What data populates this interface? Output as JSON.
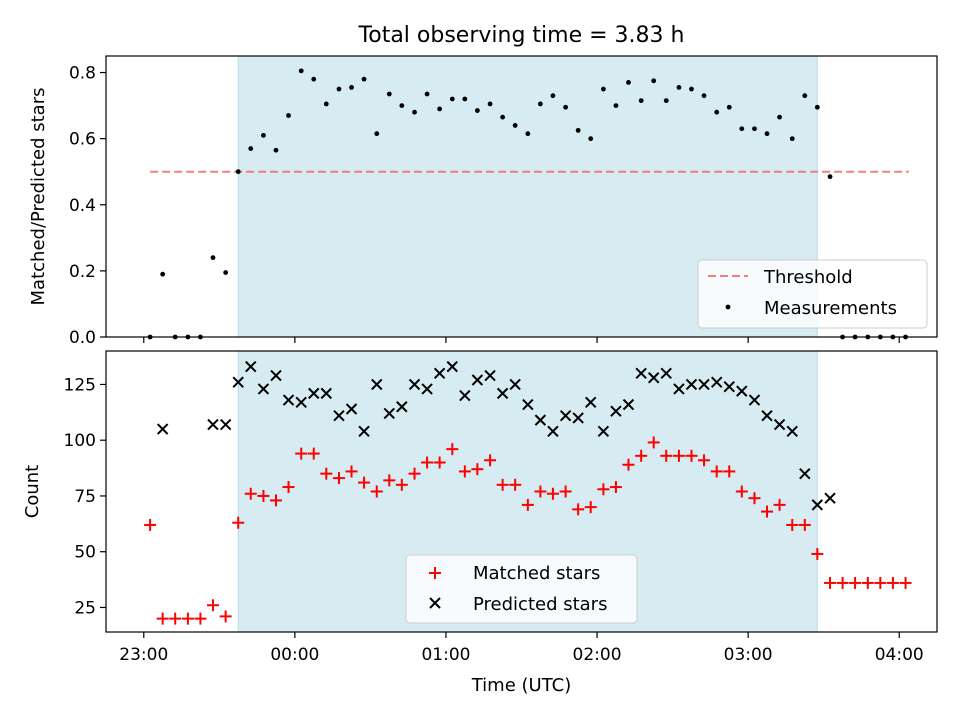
{
  "chart_data": [
    {
      "type": "scatter",
      "title": "Total observing time = 3.83 h",
      "ylabel": "Matched/Predicted stars",
      "ylim": [
        0,
        0.85
      ],
      "xlim": [
        -1.25,
        4.25
      ],
      "y_ticks": [
        0.0,
        0.2,
        0.4,
        0.6,
        0.8
      ],
      "y_tick_labels": [
        "0.0",
        "0.2",
        "0.4",
        "0.6",
        "0.8"
      ],
      "observing_window": [
        -0.375,
        3.458
      ],
      "threshold": {
        "name": "Threshold",
        "value": 0.5,
        "x_range": [
          -0.958,
          4.063
        ],
        "color": "#f08080"
      },
      "series": [
        {
          "name": "Measurements",
          "color": "#000000",
          "x": [
            -0.958,
            -0.875,
            -0.792,
            -0.708,
            -0.625,
            -0.542,
            -0.458,
            -0.375,
            -0.292,
            -0.208,
            -0.125,
            -0.042,
            0.042,
            0.125,
            0.208,
            0.292,
            0.375,
            0.458,
            0.542,
            0.625,
            0.708,
            0.792,
            0.875,
            0.958,
            1.042,
            1.125,
            1.208,
            1.292,
            1.375,
            1.458,
            1.542,
            1.625,
            1.708,
            1.792,
            1.875,
            1.958,
            2.042,
            2.125,
            2.208,
            2.292,
            2.375,
            2.458,
            2.542,
            2.625,
            2.708,
            2.792,
            2.875,
            2.958,
            3.042,
            3.125,
            3.208,
            3.292,
            3.375,
            3.458,
            3.542,
            3.625,
            3.708,
            3.792,
            3.875,
            3.958,
            4.042
          ],
          "y": [
            0.0,
            0.19,
            0.0,
            0.0,
            0.0,
            0.24,
            0.195,
            0.5,
            0.57,
            0.61,
            0.565,
            0.67,
            0.805,
            0.78,
            0.705,
            0.75,
            0.755,
            0.78,
            0.615,
            0.735,
            0.7,
            0.68,
            0.735,
            0.69,
            0.72,
            0.72,
            0.685,
            0.705,
            0.665,
            0.64,
            0.615,
            0.705,
            0.73,
            0.695,
            0.625,
            0.6,
            0.75,
            0.7,
            0.77,
            0.715,
            0.775,
            0.715,
            0.755,
            0.75,
            0.73,
            0.68,
            0.695,
            0.63,
            0.63,
            0.615,
            0.665,
            0.6,
            0.73,
            0.695,
            0.485,
            0.0,
            0.0,
            0.0,
            0.0,
            0.0,
            0.0
          ]
        }
      ],
      "legend": {
        "position": "lower right",
        "entries": [
          "Threshold",
          "Measurements"
        ]
      }
    },
    {
      "type": "scatter",
      "xlabel": "Time (UTC)",
      "ylabel": "Count",
      "ylim": [
        14,
        140
      ],
      "xlim": [
        -1.25,
        4.25
      ],
      "x_ticks": [
        -1,
        0,
        1,
        2,
        3,
        4
      ],
      "x_tick_labels": [
        "23:00",
        "00:00",
        "01:00",
        "02:00",
        "03:00",
        "04:00"
      ],
      "y_ticks": [
        25,
        50,
        75,
        100,
        125
      ],
      "y_tick_labels": [
        "25",
        "50",
        "75",
        "100",
        "125"
      ],
      "observing_window": [
        -0.375,
        3.458
      ],
      "series": [
        {
          "name": "Matched stars",
          "marker": "plus",
          "color": "#ff0000",
          "x": [
            -0.958,
            -0.875,
            -0.792,
            -0.708,
            -0.625,
            -0.542,
            -0.458,
            -0.375,
            -0.292,
            -0.208,
            -0.125,
            -0.042,
            0.042,
            0.125,
            0.208,
            0.292,
            0.375,
            0.458,
            0.542,
            0.625,
            0.708,
            0.792,
            0.875,
            0.958,
            1.042,
            1.125,
            1.208,
            1.292,
            1.375,
            1.458,
            1.542,
            1.625,
            1.708,
            1.792,
            1.875,
            1.958,
            2.042,
            2.125,
            2.208,
            2.292,
            2.375,
            2.458,
            2.542,
            2.625,
            2.708,
            2.792,
            2.875,
            2.958,
            3.042,
            3.125,
            3.208,
            3.292,
            3.375,
            3.458,
            3.542,
            3.625,
            3.708,
            3.792,
            3.875,
            3.958,
            4.042
          ],
          "y": [
            62,
            20,
            20,
            20,
            20,
            26,
            21,
            63,
            76,
            75,
            73,
            79,
            94,
            94,
            85,
            83,
            86,
            81,
            77,
            82,
            80,
            85,
            90,
            90,
            96,
            86,
            87,
            91,
            80,
            80,
            71,
            77,
            76,
            77,
            69,
            70,
            78,
            79,
            89,
            93,
            99,
            93,
            93,
            93,
            91,
            86,
            86,
            77,
            74,
            68,
            71,
            62,
            62,
            49,
            36,
            36,
            36,
            36,
            36,
            36,
            36
          ]
        },
        {
          "name": "Predicted stars",
          "marker": "x",
          "color": "#000000",
          "x": [
            -0.875,
            -0.542,
            -0.458,
            -0.375,
            -0.292,
            -0.208,
            -0.125,
            -0.042,
            0.042,
            0.125,
            0.208,
            0.292,
            0.375,
            0.458,
            0.542,
            0.625,
            0.708,
            0.792,
            0.875,
            0.958,
            1.042,
            1.125,
            1.208,
            1.292,
            1.375,
            1.458,
            1.542,
            1.625,
            1.708,
            1.792,
            1.875,
            1.958,
            2.042,
            2.125,
            2.208,
            2.292,
            2.375,
            2.458,
            2.542,
            2.625,
            2.708,
            2.792,
            2.875,
            2.958,
            3.042,
            3.125,
            3.208,
            3.292,
            3.375,
            3.458,
            3.542
          ],
          "y": [
            105,
            107,
            107,
            126,
            133,
            123,
            129,
            118,
            117,
            121,
            121,
            111,
            114,
            104,
            125,
            112,
            115,
            125,
            123,
            130,
            133,
            120,
            127,
            129,
            121,
            125,
            116,
            109,
            104,
            111,
            110,
            117,
            104,
            113,
            116,
            130,
            128,
            130,
            123,
            125,
            125,
            126,
            124,
            122,
            118,
            111,
            107,
            104,
            85,
            71,
            74
          ]
        }
      ],
      "legend": {
        "position": "lower center",
        "entries": [
          "Matched stars",
          "Predicted stars"
        ]
      }
    }
  ]
}
